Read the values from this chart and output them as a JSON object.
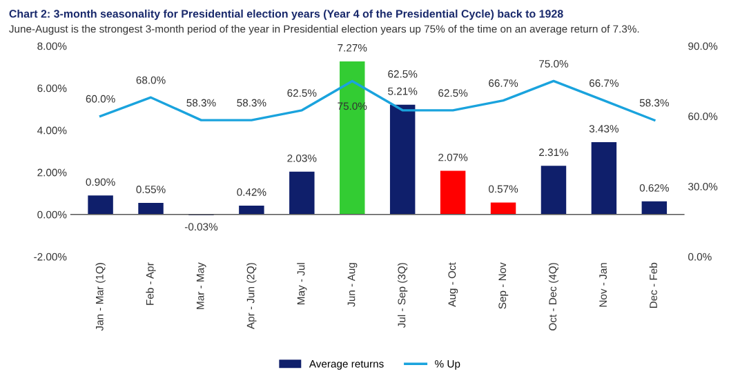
{
  "chart_data": {
    "type": "bar",
    "title": "Chart 2: 3-month seasonality for Presidential election years (Year 4 of the Presidential Cycle) back to 1928",
    "subtitle": "June-August is the strongest 3-month period of the year in Presidential election years up 75% of the time on an average return of 7.3%.",
    "categories": [
      "Jan - Mar (1Q)",
      "Feb - Apr",
      "Mar - May",
      "Apr - Jun (2Q)",
      "May - Jul",
      "Jun - Aug",
      "Jul - Sep (3Q)",
      "Aug - Oct",
      "Sep - Nov",
      "Oct - Dec (4Q)",
      "Nov - Jan",
      "Dec - Feb"
    ],
    "series": [
      {
        "name": "Average returns",
        "color": "#0f1f6b",
        "colors": [
          "#0f1f6b",
          "#0f1f6b",
          "#0f1f6b",
          "#0f1f6b",
          "#0f1f6b",
          "#33cc33",
          "#0f1f6b",
          "#ff0000",
          "#ff0000",
          "#0f1f6b",
          "#0f1f6b",
          "#0f1f6b"
        ],
        "values": [
          0.9,
          0.55,
          -0.03,
          0.42,
          2.03,
          7.27,
          5.21,
          2.07,
          0.57,
          2.31,
          3.43,
          0.62
        ],
        "value_labels": [
          "0.90%",
          "0.55%",
          "-0.03%",
          "0.42%",
          "2.03%",
          "7.27%",
          "5.21%",
          "2.07%",
          "0.57%",
          "2.31%",
          "3.43%",
          "0.62%"
        ]
      },
      {
        "name": "% Up",
        "type": "line",
        "axis": "y2",
        "color": "#1aa3dd",
        "values": [
          60.0,
          68.0,
          58.3,
          58.3,
          62.5,
          75.0,
          62.5,
          62.5,
          66.7,
          75.0,
          66.7,
          58.3
        ],
        "value_labels": [
          "60.0%",
          "68.0%",
          "58.3%",
          "58.3%",
          "62.5%",
          "75.0%",
          "62.5%",
          "62.5%",
          "66.7%",
          "75.0%",
          "66.7%",
          "58.3%"
        ]
      }
    ],
    "ylim": [
      -2,
      8
    ],
    "yticks": [
      {
        "value": -2,
        "label": "-2.00%"
      },
      {
        "value": 0,
        "label": "0.00%"
      },
      {
        "value": 2,
        "label": "2.00%"
      },
      {
        "value": 4,
        "label": "4.00%"
      },
      {
        "value": 6,
        "label": "6.00%"
      },
      {
        "value": 8,
        "label": "8.00%"
      }
    ],
    "y2lim": [
      0,
      90
    ],
    "y2ticks": [
      {
        "value": 0,
        "label": "0.0%"
      },
      {
        "value": 30,
        "label": "30.0%"
      },
      {
        "value": 60,
        "label": "60.0%"
      },
      {
        "value": 90,
        "label": "90.0%"
      }
    ],
    "ref_lines": [
      {
        "axis": "y",
        "value": 0,
        "color": "#555555"
      }
    ],
    "legend": "bottom",
    "grid": false,
    "marker": "none",
    "line_style": "solid"
  }
}
